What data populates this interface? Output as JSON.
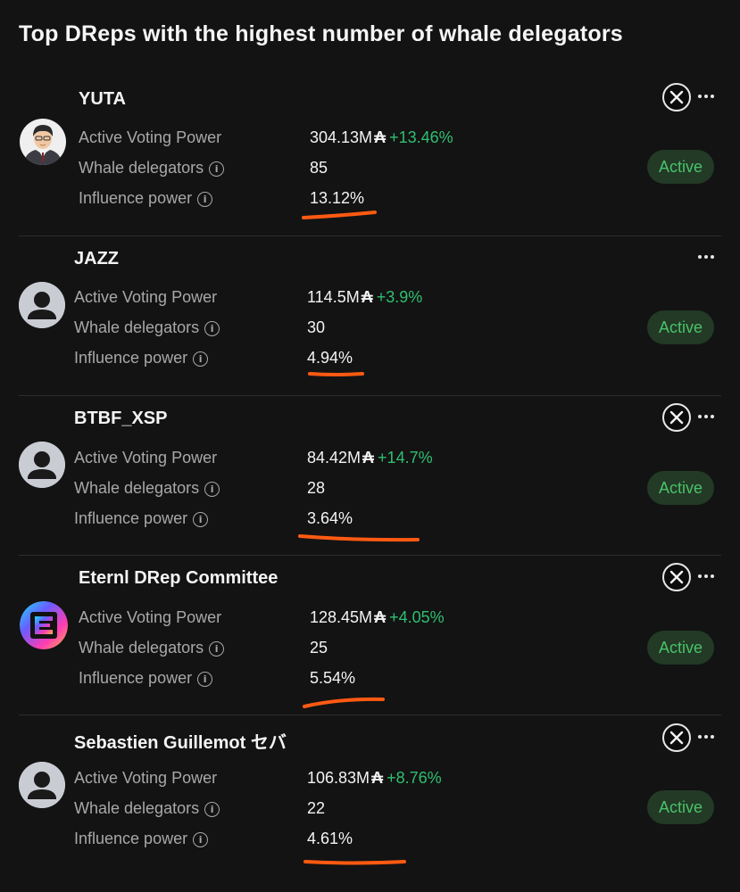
{
  "title": "Top DReps with the highest number of whale delegators",
  "labels": {
    "active_voting_power": "Active Voting Power",
    "whale_delegators": "Whale delegators",
    "influence_power": "Influence power",
    "ada_symbol": "₳",
    "info_icon": "i"
  },
  "dreps": [
    {
      "name": "YUTA",
      "voting_power": "304.13M",
      "change": "+13.46%",
      "whale_delegators": "85",
      "influence": "13.12%",
      "status": "Active",
      "avatar": "photo-avatar",
      "has_x_link": true
    },
    {
      "name": "JAZZ",
      "voting_power": "114.5M",
      "change": "+3.9%",
      "whale_delegators": "30",
      "influence": "4.94%",
      "status": "Active",
      "avatar": "default-avatar",
      "has_x_link": false
    },
    {
      "name": "BTBF_XSP",
      "voting_power": "84.42M",
      "change": "+14.7%",
      "whale_delegators": "28",
      "influence": "3.64%",
      "status": "Active",
      "avatar": "default-avatar",
      "has_x_link": true
    },
    {
      "name": "Eternl DRep Committee",
      "voting_power": "128.45M",
      "change": "+4.05%",
      "whale_delegators": "25",
      "influence": "5.54%",
      "status": "Active",
      "avatar": "eternl-logo",
      "has_x_link": true
    },
    {
      "name": "Sebastien Guillemot セバ",
      "voting_power": "106.83M",
      "change": "+8.76%",
      "whale_delegators": "22",
      "influence": "4.61%",
      "status": "Active",
      "avatar": "default-avatar",
      "has_x_link": true
    }
  ],
  "colors": {
    "background": "#131313",
    "positive_change": "#2fbf71",
    "status_text": "#4bc26a",
    "status_bg": "#223a26",
    "annotation_underline": "#ff5a12"
  }
}
